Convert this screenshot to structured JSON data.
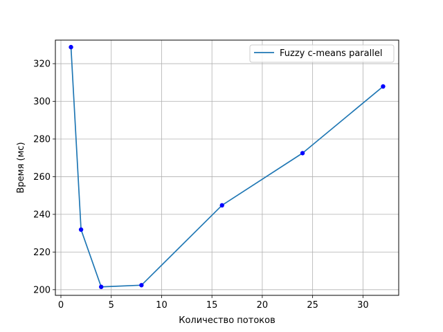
{
  "chart_data": {
    "type": "line",
    "title": "",
    "xlabel": "Количество потоков",
    "ylabel": "Время (мс)",
    "xlim": [
      -0.55,
      33.55
    ],
    "ylim": [
      197,
      332.5
    ],
    "xticks": [
      0,
      5,
      10,
      15,
      20,
      25,
      30
    ],
    "yticks": [
      200,
      220,
      240,
      260,
      280,
      300,
      320
    ],
    "grid": true,
    "legend_position": "top-right",
    "series": [
      {
        "name": "Fuzzy c-means parallel",
        "x": [
          1,
          2,
          4,
          8,
          16,
          24,
          32
        ],
        "y": [
          328.8,
          231.9,
          201.5,
          202.4,
          244.8,
          272.5,
          307.9
        ],
        "line_color": "#1f77b4",
        "marker_color": "#0000ff"
      }
    ]
  }
}
